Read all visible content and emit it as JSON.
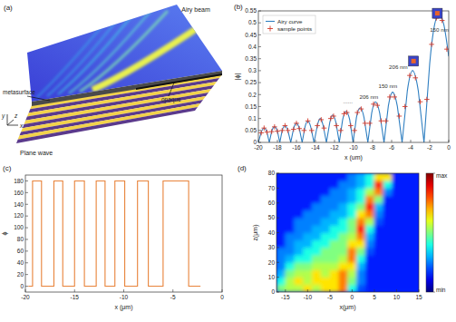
{
  "diagram": {
    "panel_label": "(a)",
    "labels": {
      "airy_beam": "Airy beam",
      "metasurface": "metasurface",
      "opaque": "opaque",
      "plane_wave": "Plane wave",
      "axis_x": "x",
      "axis_y": "y",
      "axis_z": "z"
    }
  },
  "chart_data": [
    {
      "type": "line",
      "panel_label": "(b)",
      "xlabel": "x (um)",
      "ylabel": "|ϕ|",
      "xlim": [
        -20,
        0
      ],
      "ylim": [
        0,
        0.55
      ],
      "xticks": [
        -20,
        -18,
        -16,
        -14,
        -12,
        -10,
        -8,
        -6,
        -4,
        -2,
        0
      ],
      "yticks": [
        0,
        0.05,
        0.1,
        0.15,
        0.2,
        0.25,
        0.3,
        0.35,
        0.4,
        0.45,
        0.5,
        0.55
      ],
      "legend": "upper left",
      "series": [
        {
          "name": "Airy curve",
          "color": "#2f7fc1",
          "type": "line",
          "line_style": "smooth",
          "x": [
            0,
            -0.5,
            -1,
            -1.5,
            -2,
            -2.6,
            -3.2,
            -3.8,
            -4.35,
            -4.9,
            -5.4,
            -5.9,
            -6.35,
            -6.8,
            -7.25,
            -7.7,
            -8.1,
            -8.5,
            -8.9,
            -9.3,
            -9.7,
            -10.05,
            -10.4,
            -10.8,
            -11.15,
            -11.5,
            -11.85,
            -12.2,
            -12.5,
            -12.85,
            -13.2,
            -13.5,
            -13.8,
            -14.15,
            -14.5,
            -14.8,
            -15.1,
            -15.4,
            -15.7,
            -16,
            -16.3,
            -16.6,
            -16.9,
            -17.2,
            -17.5,
            -17.75,
            -18,
            -18.3,
            -18.6,
            -18.85,
            -19.1,
            -19.4,
            -19.7,
            -20
          ],
          "values": [
            0.36,
            0.49,
            0.535,
            0.49,
            0.33,
            0,
            0.216,
            0.3,
            0.216,
            0,
            0.151,
            0.21,
            0.151,
            0,
            0.122,
            0.17,
            0.122,
            0,
            0.104,
            0.145,
            0.104,
            0,
            0.094,
            0.13,
            0.094,
            0,
            0.083,
            0.115,
            0.083,
            0,
            0.072,
            0.1,
            0.072,
            0,
            0.065,
            0.09,
            0.065,
            0,
            0.058,
            0.08,
            0.058,
            0,
            0.05,
            0.07,
            0.05,
            0,
            0.047,
            0.065,
            0.047,
            0,
            0.043,
            0.06,
            0.043,
            0
          ]
        },
        {
          "name": "sample points",
          "color": "#d43a2a",
          "type": "scatter",
          "marker": "plus",
          "x": [
            -0.2,
            -0.7,
            -1.3,
            -1.8,
            -2.3,
            -3,
            -3.5,
            -4.1,
            -4.6,
            -5.2,
            -5.7,
            -6.2,
            -6.6,
            -7.1,
            -7.5,
            -7.9,
            -8.3,
            -8.8,
            -9.2,
            -9.6,
            -9.9,
            -10.3,
            -10.7,
            -11,
            -11.35,
            -11.8,
            -12.1,
            -12.4,
            -13.1,
            -13.4,
            -13.8,
            -14.4,
            -14.8,
            -15.2,
            -15.7,
            -16,
            -16.3,
            -16.9,
            -17.2,
            -17.5,
            -18,
            -18.3,
            -18.6,
            -19.1,
            -19.4,
            -19.7
          ],
          "values": [
            0.39,
            0.51,
            0.52,
            0.41,
            0.18,
            0.17,
            0.27,
            0.28,
            0.15,
            0.11,
            0.19,
            0.19,
            0.09,
            0.09,
            0.155,
            0.16,
            0.08,
            0.08,
            0.14,
            0.125,
            0.05,
            0.07,
            0.125,
            0.12,
            0.05,
            0.07,
            0.11,
            0.1,
            0.06,
            0.095,
            0.07,
            0.05,
            0.09,
            0.05,
            0.058,
            0.08,
            0.055,
            0.05,
            0.07,
            0.05,
            0.047,
            0.065,
            0.045,
            0.043,
            0.06,
            0.04
          ]
        }
      ],
      "annotations": [
        {
          "text": "150 nm",
          "x": -1.0,
          "y": 0.47
        },
        {
          "text": "206 nm",
          "x": -5.3,
          "y": 0.315
        },
        {
          "text": "150 nm",
          "x": -6.4,
          "y": 0.235
        },
        {
          "text": "206 nm",
          "x": -8.4,
          "y": 0.19
        },
        {
          "text": "......",
          "x": -10.6,
          "y": 0.17
        }
      ],
      "insets": [
        {
          "x": -1.2,
          "y": 0.54,
          "marker": "square"
        },
        {
          "x": -3.7,
          "y": 0.34,
          "marker": "square"
        }
      ]
    },
    {
      "type": "line",
      "panel_label": "(c)",
      "xlabel": "x (μm)",
      "ylabel": "ϕ",
      "xlim": [
        -20,
        0
      ],
      "ylim": [
        -10,
        190
      ],
      "xticks": [
        -20,
        -15,
        -10,
        -5,
        0
      ],
      "yticks": [
        0,
        20,
        40,
        60,
        80,
        100,
        120,
        140,
        160,
        180
      ],
      "series": [
        {
          "color": "#e8833a",
          "type": "line",
          "line_style": "solid",
          "x": [
            -19.7,
            -19.27,
            -19.27,
            -18.36,
            -18.36,
            -17.1,
            -17.1,
            -16.2,
            -16.2,
            -15,
            -15,
            -14,
            -14,
            -12.8,
            -12.8,
            -11.9,
            -11.9,
            -10.9,
            -10.9,
            -9.9,
            -9.9,
            -8.6,
            -8.6,
            -7.5,
            -7.5,
            -6,
            -6,
            -3.4,
            -3.4,
            -2.2
          ],
          "values": [
            0,
            0,
            180,
            180,
            0,
            0,
            180,
            180,
            0,
            0,
            180,
            180,
            0,
            0,
            180,
            180,
            0,
            0,
            180,
            180,
            0,
            0,
            180,
            180,
            0,
            0,
            180,
            180,
            0,
            0
          ]
        }
      ]
    },
    {
      "type": "heatmap",
      "panel_label": "(d)",
      "xlabel": "x(μm)",
      "ylabel": "z(μm)",
      "xlim": [
        -17,
        15
      ],
      "ylim": [
        0,
        80
      ],
      "xticks": [
        -15,
        -10,
        -5,
        0,
        5,
        10,
        15
      ],
      "yticks": [
        0,
        10,
        20,
        30,
        40,
        50,
        60,
        70,
        80
      ],
      "x": [
        -16,
        -14,
        -12,
        -10,
        -8,
        -6,
        -4,
        -2,
        0,
        2,
        4,
        6,
        8,
        10,
        12,
        14
      ],
      "y": [
        2.5,
        7.5,
        12.5,
        17.5,
        22.5,
        27.5,
        32.5,
        37.5,
        42.5,
        47.5,
        52.5,
        57.5,
        62.5,
        67.5,
        72.5,
        77.5
      ],
      "cells": [
        [
          0.5,
          0.55,
          0.55,
          0.65,
          0.55,
          0.65,
          0.65,
          0.75,
          0.4,
          0.2,
          0.15,
          0.15,
          0.15,
          0.15,
          0.15,
          0.15
        ],
        [
          0.4,
          0.55,
          0.65,
          0.55,
          0.65,
          0.65,
          0.65,
          0.75,
          0.5,
          0.25,
          0.15,
          0.15,
          0.15,
          0.15,
          0.15,
          0.15
        ],
        [
          0.3,
          0.5,
          0.55,
          0.55,
          0.65,
          0.55,
          0.65,
          0.75,
          0.55,
          0.25,
          0.15,
          0.15,
          0.15,
          0.15,
          0.15,
          0.15
        ],
        [
          0.25,
          0.4,
          0.5,
          0.5,
          0.55,
          0.55,
          0.55,
          0.65,
          0.65,
          0.3,
          0.15,
          0.15,
          0.15,
          0.15,
          0.15,
          0.15
        ],
        [
          0.25,
          0.3,
          0.4,
          0.4,
          0.5,
          0.5,
          0.5,
          0.55,
          0.75,
          0.4,
          0.15,
          0.15,
          0.15,
          0.15,
          0.15,
          0.15
        ],
        [
          0.25,
          0.25,
          0.3,
          0.4,
          0.4,
          0.5,
          0.5,
          0.5,
          0.75,
          0.5,
          0.2,
          0.15,
          0.15,
          0.15,
          0.15,
          0.15
        ],
        [
          0.15,
          0.25,
          0.3,
          0.3,
          0.4,
          0.4,
          0.5,
          0.5,
          0.65,
          0.65,
          0.25,
          0.15,
          0.15,
          0.15,
          0.15,
          0.15
        ],
        [
          0.15,
          0.25,
          0.25,
          0.3,
          0.3,
          0.4,
          0.4,
          0.5,
          0.55,
          0.75,
          0.3,
          0.15,
          0.15,
          0.15,
          0.15,
          0.15
        ],
        [
          0.15,
          0.15,
          0.25,
          0.25,
          0.3,
          0.3,
          0.4,
          0.4,
          0.5,
          0.85,
          0.4,
          0.15,
          0.15,
          0.15,
          0.15,
          0.15
        ],
        [
          0.15,
          0.15,
          0.25,
          0.25,
          0.25,
          0.3,
          0.3,
          0.4,
          0.5,
          0.75,
          0.55,
          0.2,
          0.15,
          0.15,
          0.15,
          0.15
        ],
        [
          0.15,
          0.15,
          0.15,
          0.25,
          0.25,
          0.25,
          0.3,
          0.3,
          0.4,
          0.65,
          0.75,
          0.25,
          0.15,
          0.15,
          0.15,
          0.15
        ],
        [
          0.15,
          0.15,
          0.15,
          0.15,
          0.25,
          0.25,
          0.25,
          0.3,
          0.4,
          0.5,
          0.85,
          0.3,
          0.15,
          0.15,
          0.15,
          0.15
        ],
        [
          0.15,
          0.15,
          0.15,
          0.15,
          0.15,
          0.25,
          0.25,
          0.25,
          0.3,
          0.4,
          0.75,
          0.5,
          0.15,
          0.15,
          0.15,
          0.15
        ],
        [
          0.15,
          0.15,
          0.15,
          0.15,
          0.15,
          0.15,
          0.25,
          0.25,
          0.3,
          0.4,
          0.55,
          0.75,
          0.25,
          0.15,
          0.15,
          0.15
        ],
        [
          0.15,
          0.15,
          0.15,
          0.15,
          0.15,
          0.15,
          0.15,
          0.25,
          0.25,
          0.3,
          0.4,
          0.85,
          0.4,
          0.15,
          0.15,
          0.15
        ],
        [
          0.15,
          0.15,
          0.15,
          0.15,
          0.15,
          0.15,
          0.15,
          0.15,
          0.25,
          0.3,
          0.4,
          0.65,
          0.65,
          0.15,
          0.15,
          0.15
        ]
      ],
      "colorbar": {
        "range": [
          0,
          1
        ],
        "ticks": [
          {
            "value": 1,
            "label": "max"
          },
          {
            "value": 0,
            "label": "min"
          }
        ]
      }
    }
  ]
}
